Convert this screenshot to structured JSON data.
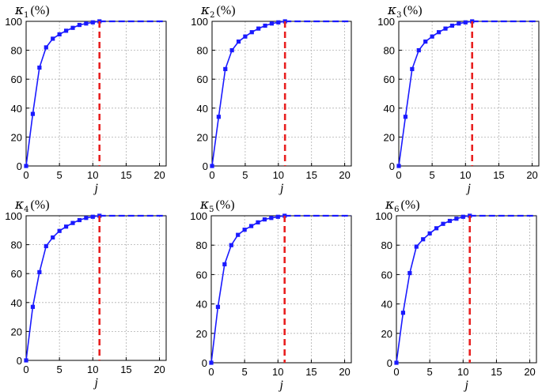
{
  "colors": {
    "series": "#1a1aff",
    "threshold": "#e82020",
    "axis": "#000000",
    "grid": "#b0b0b0"
  },
  "chart_data": [
    {
      "type": "line",
      "ylabel": {
        "symbol": "κ",
        "subscript": "1",
        "unit": "(%)"
      },
      "xlabel": "j",
      "xlim": [
        0,
        21
      ],
      "ylim": [
        0,
        100
      ],
      "xticks": [
        0,
        5,
        10,
        15,
        20
      ],
      "yticks": [
        0,
        20,
        40,
        60,
        80,
        100
      ],
      "grid": true,
      "x": [
        0,
        1,
        2,
        3,
        4,
        5,
        6,
        7,
        8,
        9,
        10,
        11,
        12,
        13,
        14,
        15,
        16,
        17,
        18,
        19,
        20,
        21
      ],
      "values": [
        0,
        36,
        68,
        82,
        88,
        91,
        93.5,
        95.5,
        97.5,
        98.5,
        99.3,
        100,
        100,
        100,
        100,
        100,
        100,
        100,
        100,
        100,
        100,
        100
      ],
      "solid_until": 11,
      "threshold_x": 11
    },
    {
      "type": "line",
      "ylabel": {
        "symbol": "κ",
        "subscript": "2",
        "unit": "(%)"
      },
      "xlabel": "j",
      "xlim": [
        0,
        21
      ],
      "ylim": [
        0,
        100
      ],
      "xticks": [
        0,
        5,
        10,
        15,
        20
      ],
      "yticks": [
        0,
        20,
        40,
        60,
        80,
        100
      ],
      "grid": true,
      "x": [
        0,
        1,
        2,
        3,
        4,
        5,
        6,
        7,
        8,
        9,
        10,
        11,
        12,
        13,
        14,
        15,
        16,
        17,
        18,
        19,
        20,
        21
      ],
      "values": [
        0,
        34,
        67,
        80,
        86,
        89.5,
        92.5,
        95,
        97,
        98.5,
        99.3,
        100,
        100,
        100,
        100,
        100,
        100,
        100,
        100,
        100,
        100,
        100
      ],
      "solid_until": 11,
      "threshold_x": 11
    },
    {
      "type": "line",
      "ylabel": {
        "symbol": "κ",
        "subscript": "3",
        "unit": "(%)"
      },
      "xlabel": "j",
      "xlim": [
        0,
        21
      ],
      "ylim": [
        0,
        100
      ],
      "xticks": [
        0,
        5,
        10,
        15,
        20
      ],
      "yticks": [
        0,
        20,
        40,
        60,
        80,
        100
      ],
      "grid": true,
      "x": [
        0,
        1,
        2,
        3,
        4,
        5,
        6,
        7,
        8,
        9,
        10,
        11,
        12,
        13,
        14,
        15,
        16,
        17,
        18,
        19,
        20,
        21
      ],
      "values": [
        0,
        34,
        67,
        80,
        86,
        89.5,
        92.5,
        95,
        97,
        98.5,
        99.3,
        100,
        100,
        100,
        100,
        100,
        100,
        100,
        100,
        100,
        100,
        100
      ],
      "solid_until": 11,
      "threshold_x": 11
    },
    {
      "type": "line",
      "ylabel": {
        "symbol": "κ",
        "subscript": "4",
        "unit": "(%)"
      },
      "xlabel": "j",
      "xlim": [
        0,
        21
      ],
      "ylim": [
        0,
        100
      ],
      "xticks": [
        0,
        5,
        10,
        15,
        20
      ],
      "yticks": [
        0,
        20,
        40,
        60,
        80,
        100
      ],
      "grid": true,
      "x": [
        0,
        1,
        2,
        3,
        4,
        5,
        6,
        7,
        8,
        9,
        10,
        11,
        12,
        13,
        14,
        15,
        16,
        17,
        18,
        19,
        20,
        21
      ],
      "values": [
        0,
        37,
        61,
        79,
        85,
        89.5,
        92.5,
        95,
        97,
        98.5,
        99.3,
        100,
        100,
        100,
        100,
        100,
        100,
        100,
        100,
        100,
        100,
        100
      ],
      "solid_until": 11,
      "threshold_x": 11
    },
    {
      "type": "line",
      "ylabel": {
        "symbol": "κ",
        "subscript": "5",
        "unit": "(%)"
      },
      "xlabel": "j",
      "xlim": [
        0,
        21
      ],
      "ylim": [
        0,
        100
      ],
      "xticks": [
        0,
        5,
        10,
        15,
        20
      ],
      "yticks": [
        0,
        20,
        40,
        60,
        80,
        100
      ],
      "grid": true,
      "x": [
        0,
        1,
        2,
        3,
        4,
        5,
        6,
        7,
        8,
        9,
        10,
        11,
        12,
        13,
        14,
        15,
        16,
        17,
        18,
        19,
        20,
        21
      ],
      "values": [
        0,
        38,
        67,
        80,
        87,
        90.5,
        93,
        95.5,
        97.5,
        98.5,
        99.3,
        100,
        100,
        100,
        100,
        100,
        100,
        100,
        100,
        100,
        100,
        100
      ],
      "solid_until": 11,
      "threshold_x": 11
    },
    {
      "type": "line",
      "ylabel": {
        "symbol": "κ",
        "subscript": "6",
        "unit": "(%)"
      },
      "xlabel": "j",
      "xlim": [
        0,
        21
      ],
      "ylim": [
        0,
        100
      ],
      "xticks": [
        0,
        5,
        10,
        15,
        20
      ],
      "yticks": [
        0,
        20,
        40,
        60,
        80,
        100
      ],
      "grid": true,
      "x": [
        0,
        1,
        2,
        3,
        4,
        5,
        6,
        7,
        8,
        9,
        10,
        11,
        12,
        13,
        14,
        15,
        16,
        17,
        18,
        19,
        20,
        21
      ],
      "values": [
        0,
        34,
        61,
        79,
        84,
        88,
        91.5,
        94.5,
        96.5,
        98,
        99.3,
        100,
        100,
        100,
        100,
        100,
        100,
        100,
        100,
        100,
        100,
        100
      ],
      "solid_until": 11,
      "threshold_x": 11
    }
  ]
}
